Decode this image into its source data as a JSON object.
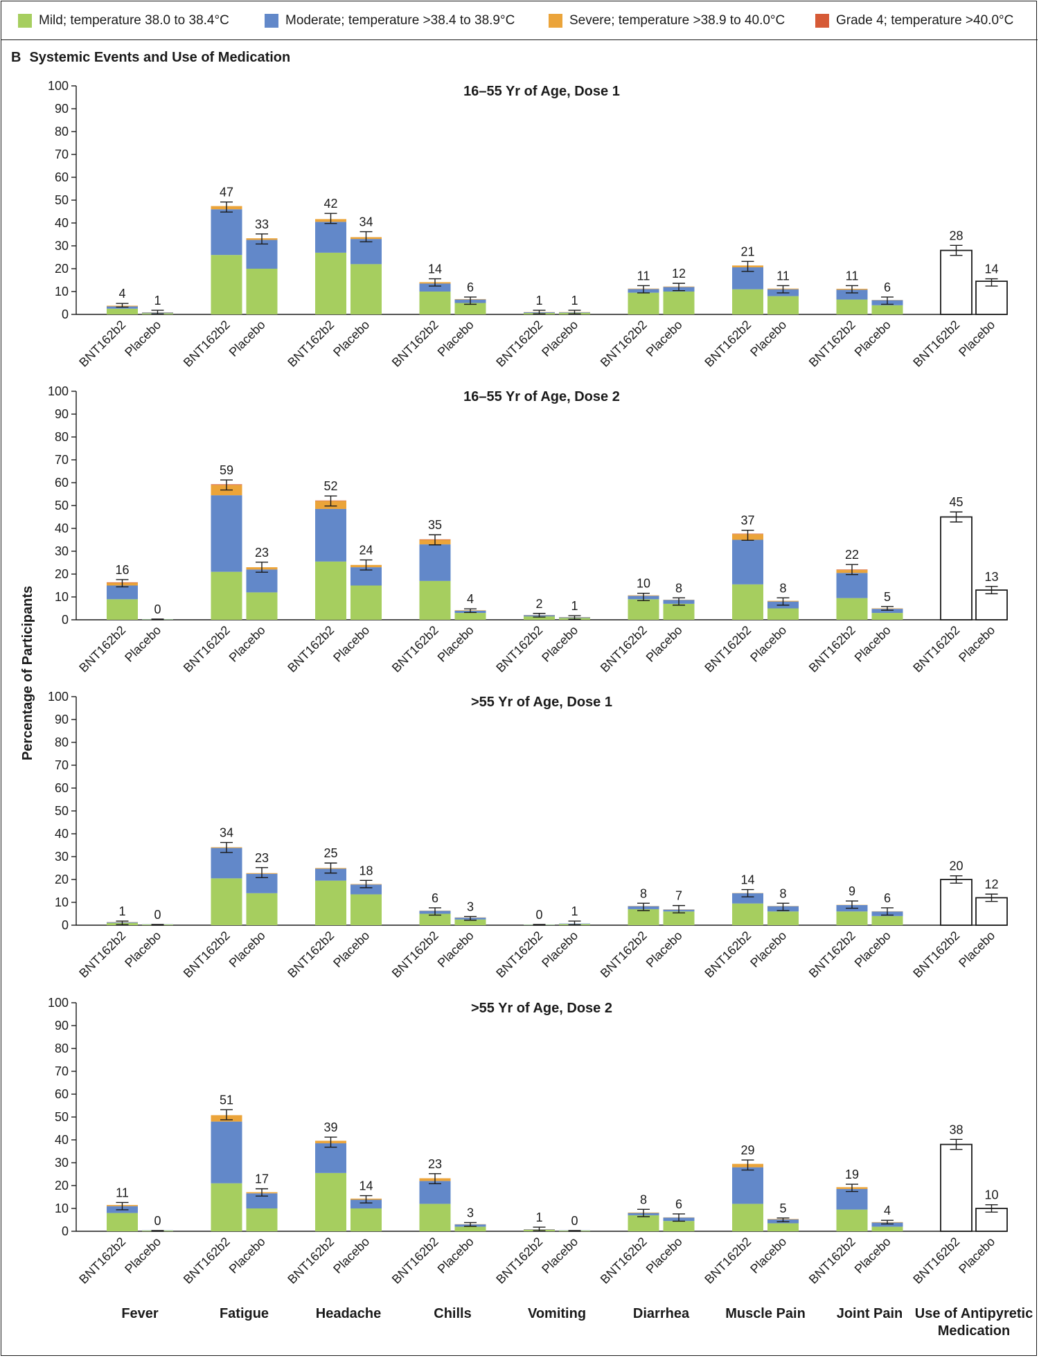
{
  "legend": {
    "items": [
      {
        "label": "Mild; temperature 38.0 to 38.4°C",
        "color": "#a6ce5f"
      },
      {
        "label": "Moderate; temperature >38.4 to 38.9°C",
        "color": "#6288c9"
      },
      {
        "label": "Severe; temperature >38.9 to 40.0°C",
        "color": "#eba43a"
      },
      {
        "label": "Grade 4; temperature >40.0°C",
        "color": "#d65a36"
      }
    ]
  },
  "panel": {
    "letter": "B",
    "title": "Systemic Events and Use of Medication"
  },
  "chart_data": {
    "type": "bar",
    "stacked": true,
    "ylabel": "Percentage of Participants",
    "ylim": [
      0,
      100
    ],
    "yticks": [
      0,
      10,
      20,
      30,
      40,
      50,
      60,
      70,
      80,
      90,
      100
    ],
    "groups": [
      "BNT162b2",
      "Placebo"
    ],
    "categories": [
      "Fever",
      "Fatigue",
      "Headache",
      "Chills",
      "Vomiting",
      "Diarrhea",
      "Muscle Pain",
      "Joint Pain",
      "Use of Antipyretic Medication"
    ],
    "series_names": [
      "Mild; temperature 38.0 to 38.4°C",
      "Moderate; temperature >38.4 to 38.9°C",
      "Severe; temperature >38.9 to 40.0°C",
      "Grade 4; temperature >40.0°C"
    ],
    "colors": {
      "mild": "#a6ce5f",
      "moderate": "#6288c9",
      "severe": "#eba43a",
      "grade4": "#d65a36",
      "medication": "#ffffff"
    },
    "panels": [
      {
        "title": "16–55 Yr of Age, Dose 1",
        "totals": [
          [
            4,
            1
          ],
          [
            47,
            33
          ],
          [
            42,
            34
          ],
          [
            14,
            6
          ],
          [
            1,
            1
          ],
          [
            11,
            12
          ],
          [
            21,
            11
          ],
          [
            11,
            6
          ],
          [
            28,
            14
          ]
        ],
        "stacks": [
          [
            [
              2.5,
              1,
              0.3,
              0
            ],
            [
              0.5,
              0.3,
              0.1,
              0
            ]
          ],
          [
            [
              26,
              20,
              1.4,
              0
            ],
            [
              20,
              12.6,
              0.7,
              0
            ]
          ],
          [
            [
              27,
              13.5,
              1.2,
              0
            ],
            [
              22,
              11,
              0.8,
              0
            ]
          ],
          [
            [
              10,
              3.5,
              0.6,
              0
            ],
            [
              5,
              1.5,
              0.2,
              0
            ]
          ],
          [
            [
              0.6,
              0.3,
              0.1,
              0
            ],
            [
              0.7,
              0.2,
              0.1,
              0
            ]
          ],
          [
            [
              9.5,
              1.6,
              0.2,
              0
            ],
            [
              10,
              2,
              0.2,
              0
            ]
          ],
          [
            [
              11,
              9.6,
              0.8,
              0
            ],
            [
              8,
              3,
              0.3,
              0
            ]
          ],
          [
            [
              6.5,
              4.3,
              0.4,
              0
            ],
            [
              4,
              2.2,
              0.1,
              0
            ]
          ],
          [
            [
              28,
              0,
              0,
              0
            ],
            [
              14.5,
              0,
              0,
              0
            ]
          ]
        ]
      },
      {
        "title": "16–55 Yr of Age, Dose 2",
        "totals": [
          [
            16,
            0
          ],
          [
            59,
            23
          ],
          [
            52,
            24
          ],
          [
            35,
            4
          ],
          [
            2,
            1
          ],
          [
            10,
            8
          ],
          [
            37,
            8
          ],
          [
            22,
            5
          ],
          [
            45,
            13
          ]
        ],
        "stacks": [
          [
            [
              9,
              6,
              1.2,
              0.2
            ],
            [
              0.2,
              0.1,
              0,
              0
            ]
          ],
          [
            [
              21,
              33.5,
              4.5,
              0.3
            ],
            [
              12,
              10,
              1,
              0
            ]
          ],
          [
            [
              25.5,
              23,
              3.5,
              0.2
            ],
            [
              15,
              8,
              1,
              0
            ]
          ],
          [
            [
              17,
              16,
              2,
              0.2
            ],
            [
              3,
              1,
              0.2,
              0
            ]
          ],
          [
            [
              1.5,
              0.5,
              0.1,
              0
            ],
            [
              0.8,
              0.3,
              0.1,
              0
            ]
          ],
          [
            [
              9,
              1.5,
              0.2,
              0
            ],
            [
              7,
              1.7,
              0.1,
              0
            ]
          ],
          [
            [
              15.5,
              19.5,
              2.5,
              0.2
            ],
            [
              5,
              3,
              0.3,
              0
            ]
          ],
          [
            [
              9.5,
              11,
              1.3,
              0.2
            ],
            [
              3,
              1.8,
              0.2,
              0
            ]
          ],
          [
            [
              45,
              0,
              0,
              0
            ],
            [
              13,
              0,
              0,
              0
            ]
          ]
        ]
      },
      {
        "title": ">55 Yr of Age, Dose 1",
        "totals": [
          [
            1,
            0
          ],
          [
            34,
            23
          ],
          [
            25,
            18
          ],
          [
            6,
            3
          ],
          [
            0,
            1
          ],
          [
            8,
            7
          ],
          [
            14,
            8
          ],
          [
            9,
            6
          ],
          [
            20,
            12
          ]
        ],
        "stacks": [
          [
            [
              1,
              0.3,
              0.1,
              0
            ],
            [
              0.3,
              0.1,
              0,
              0
            ]
          ],
          [
            [
              20.5,
              13.3,
              0.3,
              0
            ],
            [
              14,
              8.5,
              0.3,
              0
            ]
          ],
          [
            [
              19.5,
              5.2,
              0.3,
              0
            ],
            [
              13.5,
              4.3,
              0.2,
              0
            ]
          ],
          [
            [
              5,
              1.3,
              0.1,
              0
            ],
            [
              2.5,
              0.8,
              0.1,
              0
            ]
          ],
          [
            [
              0.2,
              0.1,
              0,
              0
            ],
            [
              0.5,
              0.2,
              0,
              0
            ]
          ],
          [
            [
              7,
              1.3,
              0.1,
              0
            ],
            [
              6,
              0.8,
              0.1,
              0
            ]
          ],
          [
            [
              9.5,
              4.5,
              0.1,
              0
            ],
            [
              6,
              2.3,
              0.1,
              0
            ]
          ],
          [
            [
              6,
              2.8,
              0.1,
              0
            ],
            [
              4,
              2,
              0.1,
              0
            ]
          ],
          [
            [
              20,
              0,
              0,
              0
            ],
            [
              12,
              0,
              0,
              0
            ]
          ]
        ]
      },
      {
        "title": ">55 Yr of Age, Dose 2",
        "totals": [
          [
            11,
            0
          ],
          [
            51,
            17
          ],
          [
            39,
            14
          ],
          [
            23,
            3
          ],
          [
            1,
            0
          ],
          [
            8,
            6
          ],
          [
            29,
            5
          ],
          [
            19,
            4
          ],
          [
            38,
            10
          ]
        ],
        "stacks": [
          [
            [
              8,
              3,
              0.5,
              0
            ],
            [
              0.3,
              0.1,
              0,
              0
            ]
          ],
          [
            [
              21,
              27,
              2.8,
              0
            ],
            [
              10,
              6.6,
              0.5,
              0
            ]
          ],
          [
            [
              25.5,
              13,
              1.1,
              0
            ],
            [
              10,
              3.8,
              0.5,
              0
            ]
          ],
          [
            [
              12,
              10,
              1.2,
              0
            ],
            [
              2,
              1,
              0.1,
              0
            ]
          ],
          [
            [
              0.6,
              0.2,
              0.1,
              0
            ],
            [
              0.3,
              0.1,
              0,
              0
            ]
          ],
          [
            [
              7,
              1,
              0.2,
              0
            ],
            [
              4.5,
              1.5,
              0.1,
              0
            ]
          ],
          [
            [
              12,
              16,
              1.5,
              0
            ],
            [
              3.5,
              1.7,
              0.2,
              0
            ]
          ],
          [
            [
              9.5,
              9,
              0.8,
              0
            ],
            [
              2,
              1.8,
              0.2,
              0
            ]
          ],
          [
            [
              38,
              0,
              0,
              0
            ],
            [
              10,
              0,
              0,
              0
            ]
          ]
        ]
      }
    ]
  }
}
